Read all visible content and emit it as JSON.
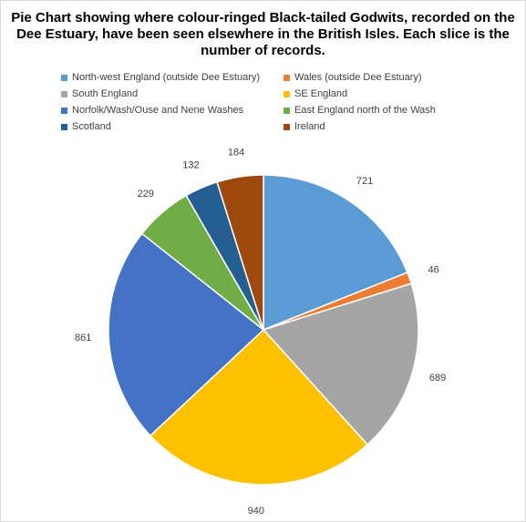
{
  "chart_data": {
    "type": "pie",
    "title": "Pie Chart showing where colour-ringed Black-tailed Godwits, recorded on the Dee Estuary, have been seen elsewhere in the British Isles. Each slice is the number of records.",
    "legend_position": "top",
    "slices": [
      {
        "label": "North-west England (outside Dee Estuary)",
        "value": 721,
        "color": "#5b9bd5",
        "value_label": "721"
      },
      {
        "label": "Wales (outside Dee Estuary)",
        "value": 46,
        "color": "#ed7d31",
        "value_label": "46"
      },
      {
        "label": "South England",
        "value": 689,
        "color": "#a5a5a5",
        "value_label": "689"
      },
      {
        "label": "SE England",
        "value": 940,
        "color": "#ffc000",
        "value_label": "940"
      },
      {
        "label": "Norfolk/Wash/Ouse and Nene Washes",
        "value": 861,
        "color": "#4472c4",
        "value_label": "861"
      },
      {
        "label": "East England north of the Wash",
        "value": 229,
        "color": "#70ad47",
        "value_label": "229"
      },
      {
        "label": "Scotland",
        "value": 132,
        "color": "#255e91",
        "value_label": "132"
      },
      {
        "label": "Ireland",
        "value": 184,
        "color": "#9e480e",
        "value_label": "184"
      }
    ]
  }
}
